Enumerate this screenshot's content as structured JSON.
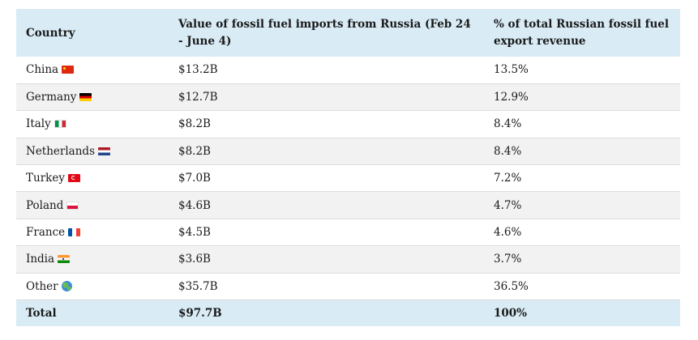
{
  "table": {
    "headers": {
      "country": "Country",
      "value": "Value of fossil fuel imports from Russia (Feb 24 - June 4)",
      "percent": "% of total Russian fossil fuel export revenue"
    },
    "rows": [
      {
        "country": "China",
        "icon": "china-flag-icon",
        "value": "$13.2B",
        "percent": "13.5%"
      },
      {
        "country": "Germany",
        "icon": "germany-flag-icon",
        "value": "$12.7B",
        "percent": "12.9%"
      },
      {
        "country": "Italy",
        "icon": "italy-flag-icon",
        "value": "$8.2B",
        "percent": "8.4%"
      },
      {
        "country": "Netherlands",
        "icon": "netherlands-flag-icon",
        "value": "$8.2B",
        "percent": "8.4%"
      },
      {
        "country": "Turkey",
        "icon": "turkey-flag-icon",
        "value": "$7.0B",
        "percent": "7.2%"
      },
      {
        "country": "Poland",
        "icon": "poland-flag-icon",
        "value": "$4.6B",
        "percent": "4.7%"
      },
      {
        "country": "France",
        "icon": "france-flag-icon",
        "value": "$4.5B",
        "percent": "4.6%"
      },
      {
        "country": "India",
        "icon": "india-flag-icon",
        "value": "$3.6B",
        "percent": "3.7%"
      },
      {
        "country": "Other",
        "icon": "globe-icon",
        "value": "$35.7B",
        "percent": "36.5%"
      }
    ],
    "total": {
      "country": "Total",
      "value": "$97.7B",
      "percent": "100%"
    }
  },
  "colors": {
    "header_bg": "#d9ecf5",
    "row_alt_bg": "#f2f2f2",
    "row_bg": "#ffffff"
  }
}
